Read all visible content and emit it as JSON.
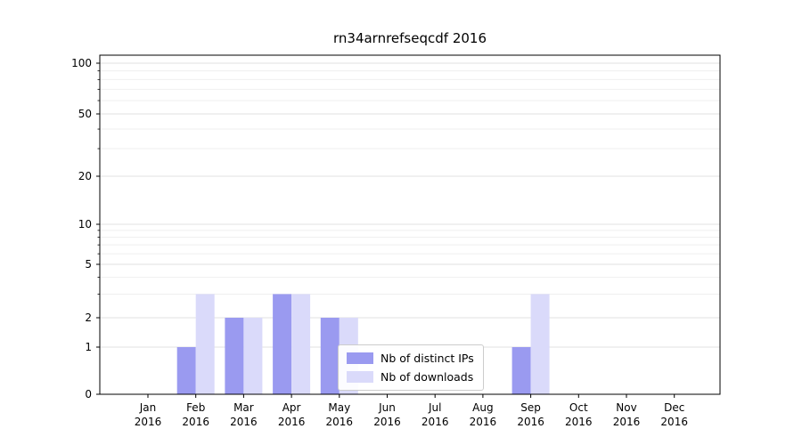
{
  "chart_data": {
    "type": "bar",
    "title": "rn34arnrefseqcdf 2016",
    "categories": [
      "Jan 2016",
      "Feb 2016",
      "Mar 2016",
      "Apr 2016",
      "May 2016",
      "Jun 2016",
      "Jul 2016",
      "Aug 2016",
      "Sep 2016",
      "Oct 2016",
      "Nov 2016",
      "Dec 2016"
    ],
    "series": [
      {
        "name": "Nb of distinct IPs",
        "color": "#9a9af0",
        "values": [
          0,
          1,
          2,
          3,
          2,
          0,
          0,
          0,
          1,
          0,
          0,
          0
        ]
      },
      {
        "name": "Nb of downloads",
        "color": "#dadafa",
        "values": [
          0,
          3,
          2,
          3,
          2,
          0,
          0,
          0,
          3,
          0,
          0,
          0
        ]
      }
    ],
    "yscale": "symlog",
    "y_ticks": [
      0,
      1,
      2,
      5,
      10,
      20,
      50,
      100
    ],
    "y_minor_gridlines": [
      3,
      4,
      6,
      7,
      8,
      9,
      30,
      40,
      60,
      70,
      80,
      90
    ],
    "ylim": [
      0,
      110
    ],
    "grid": "horizontal",
    "legend_position": "lower center",
    "colors": {
      "axis": "#000000",
      "grid_major": "#e2e2e2",
      "grid_minor": "#efefef",
      "tick_label": "#000000"
    }
  }
}
